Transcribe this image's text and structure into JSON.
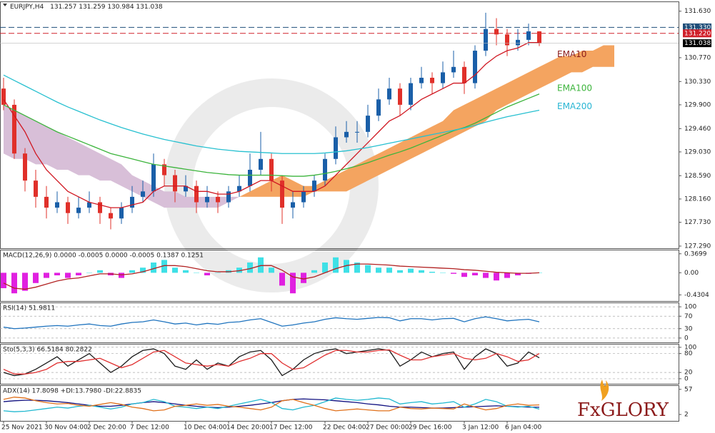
{
  "chart_data": [
    {
      "type": "candlestick",
      "title": "EURJPY,H4",
      "categories": [
        "25 Nov 2021",
        null,
        null,
        null,
        "30 Nov 04:00",
        null,
        null,
        null,
        "2 Dec 20:00",
        null,
        null,
        null,
        "7 Dec 12:00",
        null,
        null,
        null,
        null,
        "10 Dec 04:00",
        null,
        null,
        null,
        "14 Dec 20:00",
        null,
        null,
        null,
        "17 Dec 12:00",
        null,
        null,
        null,
        null,
        "22 Dec 04:00",
        null,
        null,
        null,
        "27 Dec 00:00",
        null,
        null,
        null,
        "29 Dec 16:00",
        null,
        null,
        null,
        null,
        "3 Jan 12:00",
        null,
        null,
        null,
        "6 Jan 04:00",
        null,
        null,
        null
      ],
      "open": [
        130.2,
        129.9,
        129.0,
        128.5,
        128.2,
        128.0,
        128.1,
        127.9,
        128.0,
        128.1,
        127.9,
        127.8,
        128.0,
        128.2,
        128.3,
        128.8,
        128.6,
        128.3,
        128.4,
        128.1,
        128.2,
        128.1,
        128.3,
        128.4,
        128.7,
        128.9,
        128.5,
        128.0,
        128.1,
        128.3,
        128.5,
        128.9,
        129.3,
        129.4,
        129.4,
        129.7,
        130.0,
        130.2,
        129.9,
        130.3,
        130.4,
        130.3,
        130.5,
        130.6,
        130.3,
        130.9,
        131.3,
        131.2,
        131.0,
        131.1,
        131.257
      ],
      "high": [
        130.4,
        130.0,
        129.1,
        128.7,
        128.4,
        128.3,
        128.2,
        128.2,
        128.3,
        128.2,
        128.0,
        128.1,
        128.4,
        128.5,
        129.0,
        128.9,
        128.7,
        128.6,
        128.5,
        128.4,
        128.3,
        128.4,
        128.6,
        129.0,
        129.4,
        129.0,
        128.6,
        128.3,
        128.4,
        128.6,
        129.0,
        129.5,
        129.6,
        129.6,
        129.9,
        130.2,
        130.4,
        130.3,
        130.4,
        130.6,
        130.5,
        130.7,
        130.9,
        130.7,
        131.0,
        131.6,
        131.5,
        131.3,
        131.3,
        131.4,
        131.259
      ],
      "low": [
        129.8,
        128.9,
        128.3,
        128.0,
        127.8,
        127.9,
        127.7,
        127.8,
        127.9,
        127.7,
        127.6,
        127.7,
        127.9,
        128.1,
        128.2,
        128.4,
        128.1,
        128.2,
        127.9,
        128.0,
        127.9,
        128.0,
        128.2,
        128.3,
        128.6,
        128.3,
        127.7,
        127.8,
        128.0,
        128.2,
        128.4,
        128.8,
        129.2,
        129.2,
        129.3,
        129.6,
        129.9,
        129.7,
        129.8,
        130.2,
        130.1,
        130.2,
        130.4,
        130.1,
        130.2,
        130.8,
        131.0,
        130.8,
        130.9,
        131.0,
        130.984
      ],
      "close": [
        129.9,
        129.0,
        128.5,
        128.2,
        128.0,
        128.1,
        127.9,
        128.0,
        128.1,
        127.9,
        127.8,
        128.0,
        128.2,
        128.3,
        128.8,
        128.6,
        128.3,
        128.4,
        128.1,
        128.2,
        128.1,
        128.3,
        128.4,
        128.7,
        128.9,
        128.5,
        128.0,
        128.1,
        128.3,
        128.5,
        128.9,
        129.3,
        129.4,
        129.4,
        129.7,
        130.0,
        130.2,
        129.9,
        130.3,
        130.4,
        130.3,
        130.5,
        130.6,
        130.3,
        130.9,
        131.3,
        131.2,
        131.0,
        131.1,
        131.257,
        131.038
      ],
      "up_color": "#1a5fa8",
      "down_color": "#e0302a",
      "last_color": "#000000",
      "series": [
        {
          "name": "EMA10",
          "color": "#d01822",
          "label_color": "#8b1a1a",
          "values": [
            130.0,
            129.7,
            129.4,
            129.0,
            128.7,
            128.5,
            128.3,
            128.2,
            128.1,
            128.05,
            128.0,
            128.0,
            128.05,
            128.1,
            128.3,
            128.4,
            128.4,
            128.4,
            128.3,
            128.3,
            128.25,
            128.25,
            128.3,
            128.4,
            128.5,
            128.5,
            128.4,
            128.3,
            128.3,
            128.3,
            128.4,
            128.6,
            128.8,
            129.0,
            129.2,
            129.4,
            129.6,
            129.7,
            129.85,
            130.0,
            130.1,
            130.2,
            130.3,
            130.3,
            130.45,
            130.65,
            130.8,
            130.9,
            130.95,
            131.05,
            131.05
          ]
        },
        {
          "name": "EMA100",
          "color": "#3cb43c",
          "label_color": "#3cb43c",
          "values": [
            129.9,
            129.8,
            129.7,
            129.6,
            129.5,
            129.4,
            129.32,
            129.24,
            129.16,
            129.08,
            129.0,
            128.95,
            128.9,
            128.85,
            128.8,
            128.77,
            128.74,
            128.71,
            128.68,
            128.65,
            128.63,
            128.61,
            128.6,
            128.6,
            128.6,
            128.6,
            128.59,
            128.58,
            128.58,
            128.6,
            128.63,
            128.67,
            128.72,
            128.77,
            128.83,
            128.9,
            128.97,
            129.03,
            129.1,
            129.18,
            129.26,
            129.34,
            129.42,
            129.48,
            129.56,
            129.66,
            129.76,
            129.86,
            129.94,
            130.02,
            130.1
          ]
        },
        {
          "name": "EMA200",
          "color": "#27c0d0",
          "label_color": "#27b5d3",
          "values": [
            130.45,
            130.35,
            130.25,
            130.15,
            130.05,
            129.95,
            129.86,
            129.78,
            129.7,
            129.62,
            129.55,
            129.48,
            129.42,
            129.36,
            129.31,
            129.26,
            129.22,
            129.18,
            129.14,
            129.11,
            129.08,
            129.06,
            129.04,
            129.03,
            129.02,
            129.01,
            129.0,
            129.0,
            129.0,
            129.0,
            129.01,
            129.03,
            129.05,
            129.08,
            129.11,
            129.15,
            129.19,
            129.23,
            129.27,
            129.31,
            129.35,
            129.39,
            129.43,
            129.47,
            129.52,
            129.58,
            129.63,
            129.68,
            129.72,
            129.76,
            129.8
          ]
        }
      ],
      "cloud": {
        "up_color": "#f4a460",
        "down_color": "#d8bfd8",
        "span_a": [
          129.0,
          128.9,
          128.9,
          128.8,
          128.8,
          128.7,
          128.7,
          128.6,
          128.6,
          128.5,
          128.5,
          128.4,
          128.3,
          128.2,
          128.1,
          128.0,
          128.0,
          128.0,
          128.0,
          128.0,
          128.0,
          128.1,
          128.2,
          128.3,
          128.4,
          128.5,
          128.6,
          128.5,
          128.4,
          128.4,
          128.5,
          128.6,
          128.7,
          128.8,
          128.9,
          129.0,
          129.1,
          129.2,
          129.3,
          129.4,
          129.5,
          129.6,
          129.8,
          129.9,
          130.0,
          130.1,
          130.2,
          130.3,
          130.4,
          130.5,
          130.6,
          130.7,
          130.8,
          130.8,
          130.9,
          130.9,
          131.0,
          131.0
        ],
        "span_b": [
          129.9,
          129.8,
          129.7,
          129.6,
          129.5,
          129.4,
          129.3,
          129.2,
          129.1,
          129.0,
          128.9,
          128.8,
          128.6,
          128.5,
          128.4,
          128.3,
          128.3,
          128.2,
          128.2,
          128.2,
          128.2,
          128.2,
          128.2,
          128.2,
          128.2,
          128.2,
          128.2,
          128.2,
          128.2,
          128.3,
          128.3,
          128.3,
          128.3,
          128.4,
          128.5,
          128.6,
          128.7,
          128.8,
          128.9,
          129.0,
          129.1,
          129.2,
          129.3,
          129.4,
          129.5,
          129.6,
          129.8,
          129.9,
          130.0,
          130.1,
          130.2,
          130.3,
          130.4,
          130.5,
          130.5,
          130.6,
          130.6,
          130.6
        ]
      },
      "levels": [
        {
          "value": 131.33,
          "label": "131.330",
          "color": "#1f4e79"
        },
        {
          "value": 131.22,
          "label": "131.220",
          "color": "#d0202a"
        }
      ],
      "ylim": [
        127.25,
        131.81
      ],
      "yticks": [
        {
          "value": 131.63,
          "label": "131.630"
        },
        {
          "value": 130.77,
          "label": "130.770"
        },
        {
          "value": 130.33,
          "label": "130.330"
        },
        {
          "value": 129.9,
          "label": "129.900"
        },
        {
          "value": 129.46,
          "label": "129.460"
        },
        {
          "value": 129.03,
          "label": "129.030"
        },
        {
          "value": 128.59,
          "label": "128.590"
        },
        {
          "value": 128.16,
          "label": "128.160"
        },
        {
          "value": 127.73,
          "label": "127.730"
        },
        {
          "value": 127.29,
          "label": "127.290"
        }
      ],
      "grid": false
    },
    {
      "type": "macd",
      "title": "MACD(12,26,9) 0.0000 -0.0005 0.0000 -0.0005 0.1387 0.1251",
      "histogram": {
        "up_color": "#3fe0e6",
        "down_color": "#e020e0",
        "values": [
          -0.3,
          -0.4,
          -0.35,
          -0.2,
          -0.1,
          -0.05,
          -0.1,
          -0.05,
          0.0,
          0.05,
          -0.05,
          -0.1,
          0.05,
          0.1,
          0.2,
          0.25,
          0.1,
          0.05,
          0.0,
          -0.05,
          0.0,
          0.05,
          0.1,
          0.2,
          0.3,
          0.1,
          -0.25,
          -0.4,
          -0.2,
          0.05,
          0.2,
          0.3,
          0.25,
          0.2,
          0.15,
          0.1,
          0.1,
          0.05,
          0.08,
          0.05,
          0.02,
          0.0,
          -0.02,
          -0.08,
          -0.05,
          -0.1,
          -0.15,
          -0.1,
          -0.05,
          -0.02,
          0.0
        ]
      },
      "series": [
        {
          "color": "#b22222",
          "values": [
            -0.2,
            -0.3,
            -0.32,
            -0.28,
            -0.22,
            -0.16,
            -0.12,
            -0.1,
            -0.06,
            -0.02,
            -0.02,
            -0.04,
            -0.02,
            0.02,
            0.08,
            0.14,
            0.14,
            0.12,
            0.08,
            0.04,
            0.02,
            0.02,
            0.04,
            0.08,
            0.14,
            0.14,
            0.05,
            -0.08,
            -0.12,
            -0.08,
            0.0,
            0.08,
            0.14,
            0.17,
            0.17,
            0.16,
            0.15,
            0.13,
            0.12,
            0.11,
            0.1,
            0.09,
            0.08,
            0.06,
            0.05,
            0.03,
            0.01,
            0.0,
            -0.01,
            -0.01,
            0.0
          ]
        }
      ],
      "ylim": [
        -0.55,
        0.45
      ],
      "yticks": [
        0.3699,
        {
          "value": 0,
          "label": "0.00"
        },
        -0.4304
      ],
      "grid": false
    },
    {
      "type": "line",
      "title": "RSI(14) 51.9811",
      "series": [
        {
          "color": "#1e73be",
          "values": [
            35,
            30,
            32,
            35,
            38,
            40,
            38,
            42,
            45,
            40,
            38,
            45,
            50,
            52,
            58,
            52,
            45,
            48,
            42,
            47,
            44,
            50,
            52,
            58,
            62,
            50,
            38,
            42,
            48,
            52,
            60,
            65,
            62,
            60,
            63,
            66,
            65,
            55,
            62,
            62,
            58,
            62,
            63,
            52,
            62,
            68,
            62,
            55,
            58,
            60,
            51.9811
          ]
        }
      ],
      "ylim": [
        -14,
        114
      ],
      "yticks": [
        100,
        70,
        30,
        0
      ],
      "grid": true
    },
    {
      "type": "line",
      "title": "Sto(5,3,3) 66.5184 80.2822",
      "series": [
        {
          "color": "#1a1a1a",
          "values": [
            20,
            10,
            15,
            30,
            50,
            70,
            40,
            60,
            80,
            50,
            20,
            40,
            70,
            90,
            95,
            80,
            40,
            30,
            60,
            30,
            50,
            40,
            70,
            85,
            90,
            60,
            10,
            30,
            60,
            80,
            90,
            95,
            80,
            85,
            90,
            95,
            90,
            40,
            60,
            85,
            70,
            80,
            85,
            30,
            70,
            95,
            80,
            40,
            50,
            85,
            66.5184
          ]
        },
        {
          "color": "#e03030",
          "values": [
            30,
            15,
            15,
            20,
            30,
            50,
            55,
            55,
            60,
            65,
            50,
            35,
            45,
            65,
            85,
            90,
            70,
            50,
            45,
            40,
            45,
            40,
            55,
            65,
            80,
            80,
            50,
            30,
            35,
            55,
            75,
            90,
            90,
            85,
            85,
            90,
            92,
            75,
            60,
            60,
            70,
            75,
            80,
            65,
            60,
            65,
            80,
            70,
            55,
            60,
            80.2822
          ]
        }
      ],
      "ylim": [
        -16,
        111
      ],
      "yticks": [
        100,
        80,
        20,
        0
      ],
      "grid": true
    },
    {
      "type": "line",
      "title": "ADX(14) 17.8098 +DI:13.7980 -DI:22.8835",
      "series": [
        {
          "color": "#101080",
          "values": [
            30,
            32,
            33,
            33,
            32,
            30,
            28,
            25,
            22,
            20,
            20,
            22,
            25,
            28,
            30,
            28,
            25,
            22,
            20,
            18,
            17,
            18,
            20,
            22,
            25,
            28,
            32,
            35,
            36,
            35,
            34,
            32,
            30,
            28,
            25,
            23,
            20,
            18,
            18,
            17,
            16,
            16,
            17,
            18,
            19,
            20,
            21,
            20,
            19,
            18,
            17.8098
          ]
        },
        {
          "color": "#20b8d0",
          "values": [
            10,
            8,
            9,
            12,
            15,
            18,
            16,
            20,
            22,
            18,
            14,
            18,
            25,
            28,
            35,
            30,
            20,
            18,
            15,
            18,
            15,
            20,
            25,
            30,
            35,
            28,
            15,
            12,
            18,
            22,
            30,
            38,
            35,
            33,
            35,
            38,
            36,
            25,
            28,
            30,
            25,
            27,
            30,
            18,
            25,
            35,
            30,
            20,
            18,
            20,
            13.798
          ]
        },
        {
          "color": "#e0701a",
          "values": [
            35,
            40,
            38,
            32,
            28,
            25,
            26,
            22,
            20,
            24,
            28,
            24,
            18,
            15,
            10,
            12,
            20,
            22,
            25,
            22,
            24,
            20,
            18,
            15,
            12,
            18,
            32,
            35,
            28,
            22,
            15,
            10,
            12,
            14,
            12,
            10,
            10,
            18,
            15,
            14,
            16,
            15,
            14,
            25,
            18,
            12,
            15,
            22,
            25,
            22,
            22.8835
          ]
        }
      ],
      "ylim": [
        -12,
        66
      ],
      "yticks": [
        57,
        2
      ],
      "grid": false
    }
  ],
  "logo": "FxGLORY"
}
